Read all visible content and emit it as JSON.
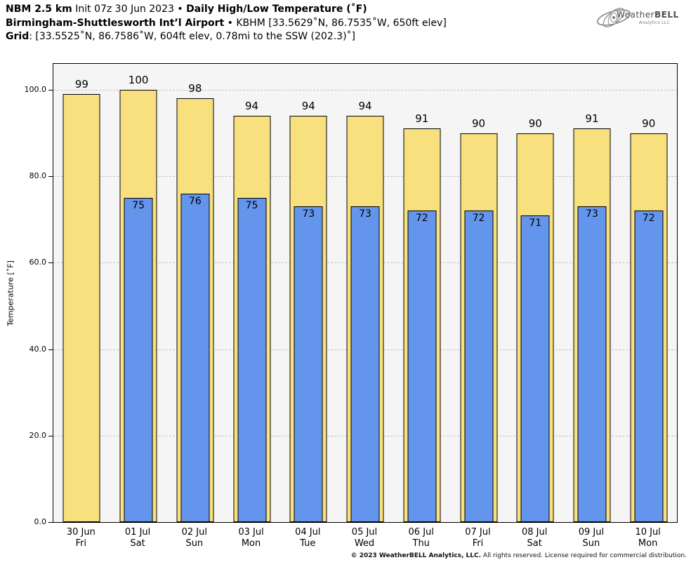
{
  "header": {
    "line1": {
      "b1": "NBM 2.5 km",
      "r1": " Init 07z 30 Jun 2023 • ",
      "b2": "Daily High/Low Temperature (˚F)"
    },
    "line2": {
      "b": "Birmingham-Shuttlesworth Int’l Airport",
      "r": " • KBHM [33.5629˚N, 86.7535˚W, 650ft elev]"
    },
    "line3": {
      "b": "Grid",
      "r": ": [33.5525˚N, 86.7586˚W, 604ft elev, 0.78mi to the SSW (202.3)˚]"
    }
  },
  "logo": {
    "t1": "Weather",
    "t2": "BELL",
    "sub": "Analytics LLC"
  },
  "footer": {
    "b": "© 2023 WeatherBELL Analytics, LLC.",
    "r": " All rights reserved. License required for commercial distribution."
  },
  "chart_data": {
    "type": "bar",
    "title": "NBM 2.5 km Daily High/Low Temperature (˚F) — Birmingham-Shuttlesworth Int’l Airport (KBHM)",
    "xlabel": "",
    "ylabel": "Temperature [˚F]",
    "ylim": [
      0,
      106
    ],
    "yticks": [
      0,
      20,
      40,
      60,
      80,
      100
    ],
    "ytick_labels": [
      "0.0",
      "20.0",
      "40.0",
      "60.0",
      "80.0",
      "100.0"
    ],
    "grid": "dashed-horizontal",
    "plot_background": "#f5f5f5",
    "legend": "none",
    "categories": [
      {
        "date": "30 Jun",
        "day": "Fri"
      },
      {
        "date": "01 Jul",
        "day": "Sat"
      },
      {
        "date": "02 Jul",
        "day": "Sun"
      },
      {
        "date": "03 Jul",
        "day": "Mon"
      },
      {
        "date": "04 Jul",
        "day": "Tue"
      },
      {
        "date": "05 Jul",
        "day": "Wed"
      },
      {
        "date": "06 Jul",
        "day": "Thu"
      },
      {
        "date": "07 Jul",
        "day": "Fri"
      },
      {
        "date": "08 Jul",
        "day": "Sat"
      },
      {
        "date": "09 Jul",
        "day": "Sun"
      },
      {
        "date": "10 Jul",
        "day": "Mon"
      }
    ],
    "series": [
      {
        "name": "High",
        "color": "#f9e07f",
        "values": [
          99,
          100,
          98,
          94,
          94,
          94,
          91,
          90,
          90,
          91,
          90
        ]
      },
      {
        "name": "Low",
        "color": "#6495ed",
        "values": [
          null,
          75,
          76,
          75,
          73,
          73,
          72,
          72,
          71,
          73,
          72
        ]
      }
    ]
  }
}
